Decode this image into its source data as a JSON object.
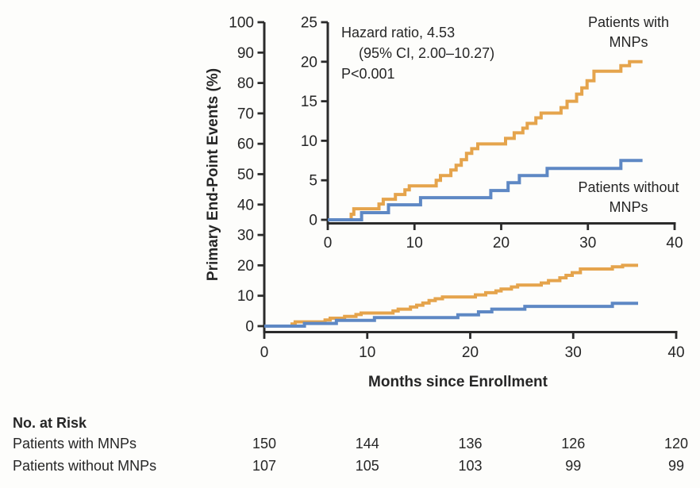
{
  "colors": {
    "with_mnps": "#E5A44C",
    "without_mnps": "#5E88C4",
    "axis": "#2B2B2B",
    "text": "#262626",
    "background": "#FDFDFB"
  },
  "annotation": {
    "line1": "Hazard ratio, 4.53",
    "line2": "(95% CI, 2.00–10.27)",
    "line3": "P<0.001"
  },
  "curve_labels": {
    "with": [
      "Patients with",
      "MNPs"
    ],
    "without": [
      "Patients without",
      "MNPs"
    ]
  },
  "risk_table": {
    "title": "No. at Risk",
    "months": [
      0,
      10,
      20,
      30,
      40
    ],
    "rows": [
      {
        "label": "Patients with MNPs",
        "values": [
          "150",
          "144",
          "136",
          "126",
          "120"
        ]
      },
      {
        "label": "Patients without MNPs",
        "values": [
          "107",
          "105",
          "103",
          "99",
          "99"
        ]
      }
    ]
  },
  "chart_data": {
    "type": "line",
    "subtype": "step-cumulative-incidence",
    "title": "",
    "xlabel": "Months since Enrollment",
    "ylabel": "Primary End-Point Events (%)",
    "legend_position": "labels-on-plot",
    "grid": false,
    "main_axes": {
      "xlim": [
        0,
        40
      ],
      "ylim": [
        0,
        100
      ],
      "xticks": [
        0,
        10,
        20,
        30,
        40
      ],
      "yticks": [
        0,
        10,
        20,
        30,
        40,
        50,
        60,
        70,
        80,
        90,
        100
      ]
    },
    "inset_axes": {
      "xlim": [
        0,
        40
      ],
      "ylim": [
        0,
        25
      ],
      "xticks": [
        0,
        10,
        20,
        30,
        40
      ],
      "yticks": [
        0,
        5,
        10,
        15,
        20,
        25
      ]
    },
    "series": [
      {
        "name": "Patients with MNPs",
        "color": "#E5A44C",
        "start": [
          0,
          0
        ],
        "end_month": 36.3,
        "steps": [
          [
            2.7,
            0.7
          ],
          [
            3.0,
            1.4
          ],
          [
            5.9,
            2.0
          ],
          [
            6.4,
            2.6
          ],
          [
            7.8,
            3.2
          ],
          [
            8.9,
            3.8
          ],
          [
            9.4,
            4.3
          ],
          [
            12.5,
            5.0
          ],
          [
            13.0,
            5.6
          ],
          [
            14.2,
            6.3
          ],
          [
            14.8,
            6.9
          ],
          [
            15.4,
            7.6
          ],
          [
            16.0,
            8.4
          ],
          [
            16.6,
            9.0
          ],
          [
            17.3,
            9.6
          ],
          [
            20.5,
            10.3
          ],
          [
            21.5,
            11.0
          ],
          [
            22.5,
            11.6
          ],
          [
            23.0,
            12.2
          ],
          [
            24.0,
            12.9
          ],
          [
            24.6,
            13.5
          ],
          [
            26.9,
            14.2
          ],
          [
            27.6,
            15.0
          ],
          [
            28.7,
            15.9
          ],
          [
            29.3,
            16.7
          ],
          [
            29.9,
            17.6
          ],
          [
            30.7,
            18.8
          ],
          [
            33.8,
            19.5
          ],
          [
            34.8,
            20.0
          ]
        ]
      },
      {
        "name": "Patients without MNPs",
        "color": "#5E88C4",
        "start": [
          0,
          0
        ],
        "end_month": 36.3,
        "steps": [
          [
            3.9,
            0.9
          ],
          [
            7.0,
            1.9
          ],
          [
            10.7,
            2.8
          ],
          [
            18.8,
            3.7
          ],
          [
            20.8,
            4.7
          ],
          [
            22.1,
            5.6
          ],
          [
            25.3,
            6.5
          ],
          [
            33.8,
            7.5
          ]
        ]
      }
    ]
  }
}
